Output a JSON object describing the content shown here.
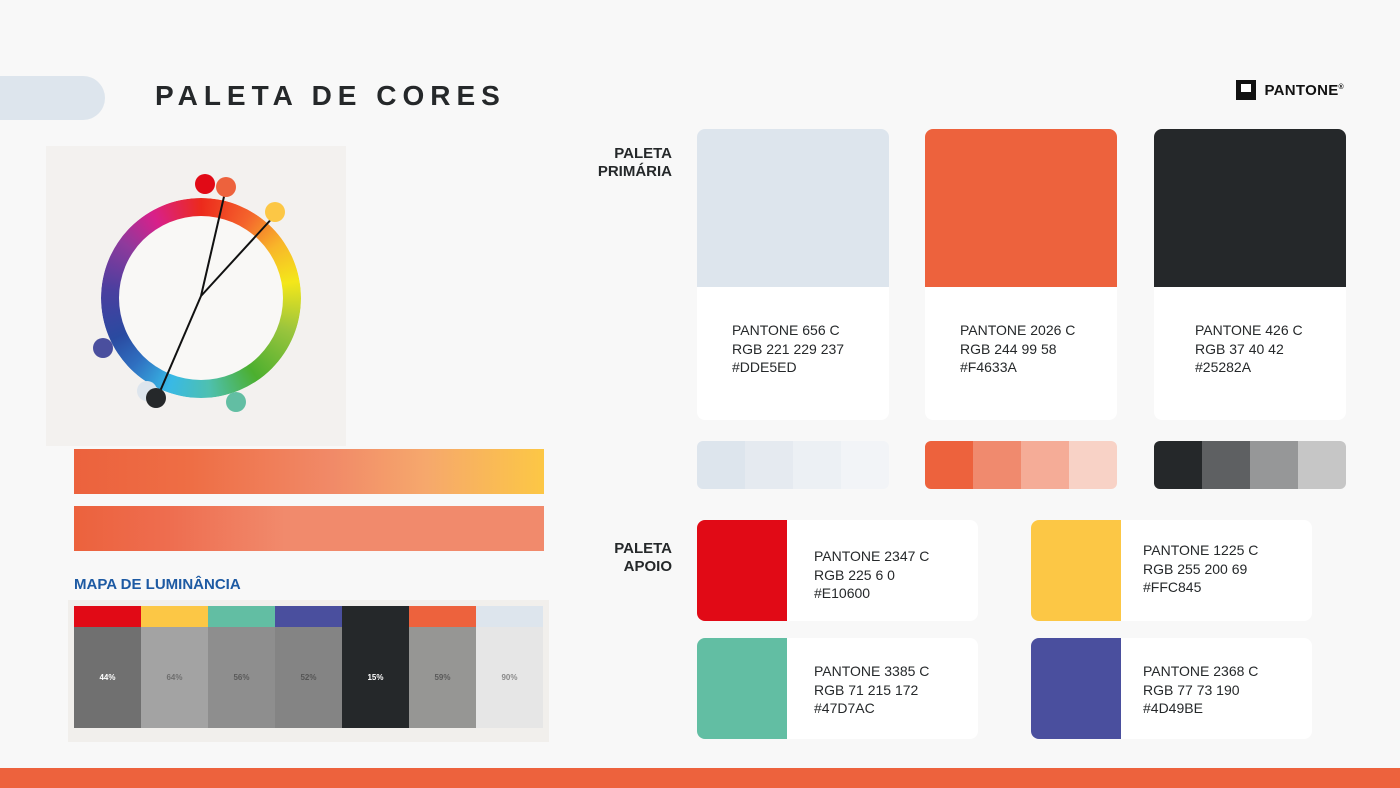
{
  "header": {
    "title": "PALETA DE CORES",
    "brand": "PANTONE",
    "brand_mark": "®"
  },
  "primary": {
    "label_line1": "PALETA",
    "label_line2": "PRIMÁRIA",
    "cards": [
      {
        "pantone": "PANTONE  656 C",
        "rgb": "RGB 221 229 237",
        "hex": "#DDE5ED",
        "color": "#dde5ed",
        "tints": [
          "#dde5ed",
          "#e5eaf0",
          "#ecf0f4",
          "#f2f4f7"
        ]
      },
      {
        "pantone": "PANTONE  2026 C",
        "rgb": "RGB 244 99 58",
        "hex": "#F4633A",
        "color": "#ed623d",
        "tints": [
          "#ed623d",
          "#f08a6e",
          "#f5ac97",
          "#f8d2c6"
        ]
      },
      {
        "pantone": "PANTONE  426 C",
        "rgb": "RGB 37 40 42",
        "hex": "#25282A",
        "color": "#25282a",
        "tints": [
          "#25282a",
          "#5e6062",
          "#969798",
          "#c6c6c6"
        ]
      }
    ]
  },
  "support": {
    "label_line1": "PALETA",
    "label_line2": "APOIO",
    "cards": [
      {
        "pantone": "PANTONE  2347 C",
        "rgb": "RGB 225 6 0",
        "hex": "#E10600",
        "color": "#e10a16"
      },
      {
        "pantone": "PANTONE  1225 C",
        "rgb": "RGB 255 200 69",
        "hex": "#FFC845",
        "color": "#fcc745"
      },
      {
        "pantone": "PANTONE  3385 C",
        "rgb": "RGB 71 215 172",
        "hex": "#47D7AC",
        "color": "#62bea3"
      },
      {
        "pantone": "PANTONE  2368 C",
        "rgb": "RGB 77 73 190",
        "hex": "#4D49BE",
        "color": "#4a4f9e"
      }
    ]
  },
  "luminance": {
    "title": "MAPA DE LUMINÂNCIA",
    "columns": [
      {
        "color": "#e10a16",
        "gray": "#707070",
        "value": "44%",
        "text_color": "#ffffff"
      },
      {
        "color": "#fcc745",
        "gray": "#a3a3a3",
        "value": "64%",
        "text_color": "#6e6e6e"
      },
      {
        "color": "#62bea3",
        "gray": "#8e8e8e",
        "value": "56%",
        "text_color": "#5a5a5a"
      },
      {
        "color": "#4a4f9e",
        "gray": "#848484",
        "value": "52%",
        "text_color": "#555555"
      },
      {
        "color": "#25282a",
        "gray": "#25282a",
        "value": "15%",
        "text_color": "#ffffff"
      },
      {
        "color": "#ed623d",
        "gray": "#969694",
        "value": "59%",
        "text_color": "#5a5a5a"
      },
      {
        "color": "#dde5ed",
        "gray": "#e6e6e6",
        "value": "90%",
        "text_color": "#8a8a8a"
      }
    ]
  },
  "colors": {
    "accent": "#ed623d",
    "blue_heading": "#1d5aa3",
    "background": "#f8f8f8"
  }
}
